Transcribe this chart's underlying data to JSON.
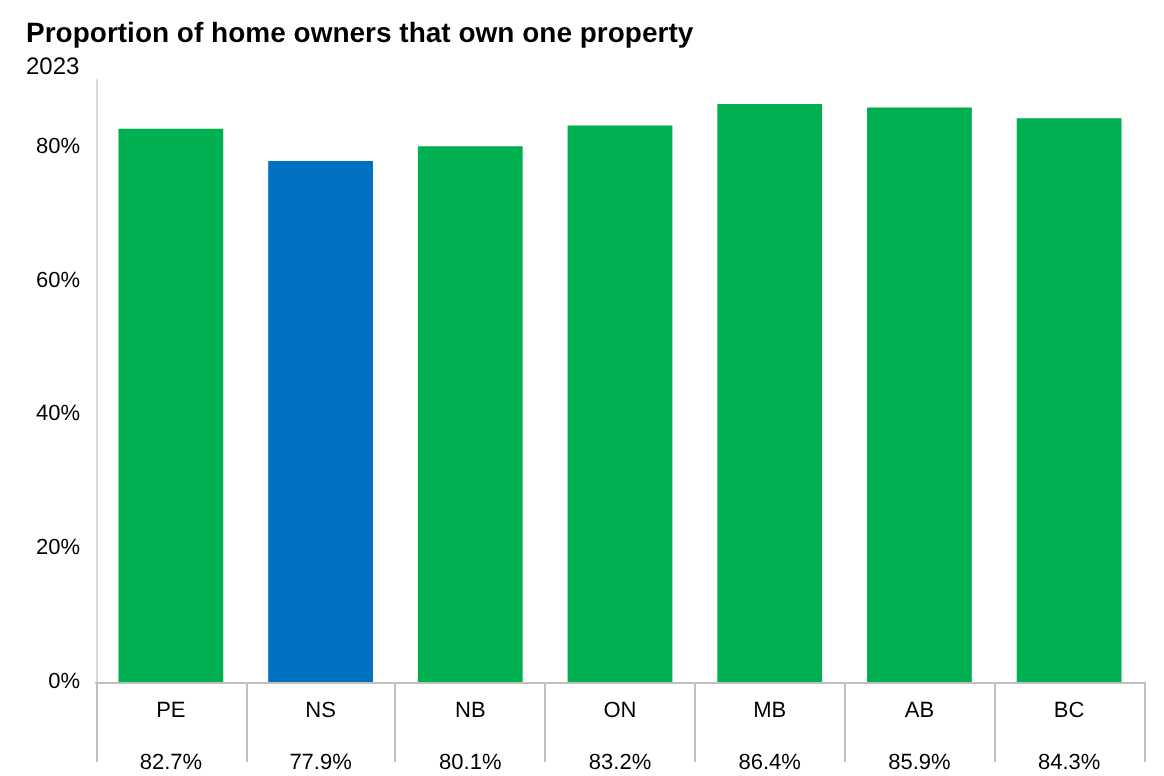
{
  "chart_data": {
    "type": "bar",
    "title": "Proportion of home owners that own one property",
    "subtitle": "2023",
    "categories": [
      "PE",
      "NS",
      "NB",
      "ON",
      "MB",
      "AB",
      "BC"
    ],
    "values": [
      82.7,
      77.9,
      80.1,
      83.2,
      86.4,
      85.9,
      84.3
    ],
    "colors": [
      "#00b050",
      "#0070c0",
      "#00b050",
      "#00b050",
      "#00b050",
      "#00b050",
      "#00b050"
    ],
    "value_labels": [
      "82.7%",
      "77.9%",
      "80.1%",
      "83.2%",
      "86.4%",
      "85.9%",
      "84.3%"
    ],
    "ylim": [
      0,
      90
    ],
    "yticks": [
      {
        "value": 0,
        "label": "0%"
      },
      {
        "value": 20,
        "label": "20%"
      },
      {
        "value": 40,
        "label": "40%"
      },
      {
        "value": 60,
        "label": "60%"
      },
      {
        "value": 80,
        "label": "80%"
      }
    ],
    "grid": false
  }
}
